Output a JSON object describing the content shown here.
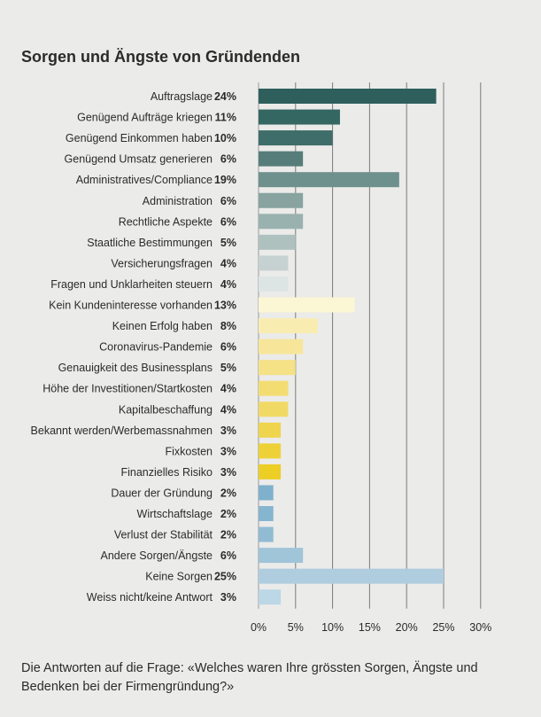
{
  "chart_data": {
    "type": "bar",
    "orientation": "horizontal",
    "title": "Sorgen und Ängste von Gründenden",
    "categories": [
      "Auftragslage",
      "Genügend Aufträge kriegen",
      "Genügend Einkommen haben",
      "Genügend Umsatz generieren",
      "Administratives/Compliance",
      "Administration",
      "Rechtliche Aspekte",
      "Staatliche Bestimmungen",
      "Versicherungsfragen",
      "Fragen und Unklarheiten steuern",
      "Kein Kundeninteresse vorhanden",
      "Keinen Erfolg haben",
      "Coronavirus-Pandemie",
      "Genauigkeit des Businessplans",
      "Höhe der Investitionen/Startkosten",
      "Kapitalbeschaffung",
      "Bekannt werden/Werbemassnahmen",
      "Fixkosten",
      "Finanzielles Risiko",
      "Dauer der Gründung",
      "Wirtschaftslage",
      "Verlust der Stabilität",
      "Andere Sorgen/Ängste",
      "Keine Sorgen",
      "Weiss nicht/keine Antwort"
    ],
    "values": [
      24,
      11,
      10,
      6,
      19,
      6,
      6,
      5,
      4,
      4,
      13,
      8,
      6,
      5,
      4,
      4,
      3,
      3,
      3,
      2,
      2,
      2,
      6,
      25,
      3
    ],
    "value_labels": [
      "24%",
      "11%",
      "10%",
      "6%",
      "19%",
      "6%",
      "6%",
      "5%",
      "4%",
      "4%",
      "13%",
      "8%",
      "6%",
      "5%",
      "4%",
      "4%",
      "3%",
      "3%",
      "3%",
      "2%",
      "2%",
      "2%",
      "6%",
      "25%",
      "3%"
    ],
    "colors": [
      "#2e5f5c",
      "#346662",
      "#3f6d69",
      "#567d79",
      "#6e918d",
      "#88a3a0",
      "#9ab2af",
      "#afc1bf",
      "#c6d2d1",
      "#dde4e4",
      "#fbf6d3",
      "#f9ecb1",
      "#f7e69a",
      "#f5e287",
      "#f3dd73",
      "#f1d965",
      "#efd44d",
      "#eed136",
      "#ecce25",
      "#7fb1cc",
      "#86b5cf",
      "#90bbd3",
      "#a0c4d8",
      "#b0cde0",
      "#bcd7e6"
    ],
    "xlim": [
      0,
      30
    ],
    "xticks": [
      0,
      5,
      10,
      15,
      20,
      25,
      30
    ],
    "xtick_labels": [
      "0%",
      "5%",
      "10%",
      "15%",
      "20%",
      "25%",
      "30%"
    ],
    "grid": true
  },
  "caption": "Die Antworten auf die Frage: «Welches waren Ihre grössten Sorgen, Ängste und Bedenken bei der Firmengründung?»"
}
